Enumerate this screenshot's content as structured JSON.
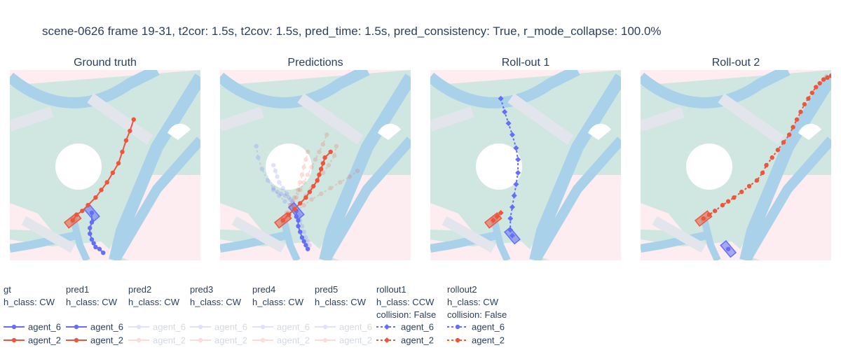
{
  "figure": {
    "title": "scene-0626 frame 19-31, t2cor: 1.5s, t2cov: 1.5s, pred_time: 1.5s, pred_consistency: True, r_mode_collapse: 100.0%"
  },
  "colors": {
    "agent_6": "#636efa",
    "agent_2": "#ef553b",
    "map_bg": "#fdedf1",
    "map_drivable": "#d0e6e0",
    "map_lane": "#a9d1ea",
    "map_cross": "#e2e5ec"
  },
  "chart_data": [
    {
      "type": "line",
      "title": "Ground truth",
      "xlabel": "",
      "ylabel": "",
      "xlim": [
        0,
        100
      ],
      "ylim": [
        0,
        100
      ],
      "series": [
        {
          "name": "agent_6",
          "group": "gt",
          "marker": "circle",
          "dash": "solid",
          "opacity": 1,
          "x": [
            43,
            43,
            42,
            42,
            43,
            44,
            45,
            47,
            49
          ],
          "y": [
            25,
            20,
            17,
            14,
            11,
            9,
            7,
            6,
            4
          ]
        },
        {
          "name": "agent_2",
          "group": "gt",
          "marker": "circle",
          "dash": "solid",
          "opacity": 1,
          "x": [
            33,
            35,
            38,
            41,
            45,
            48,
            51,
            54,
            57,
            59,
            61,
            63,
            65
          ],
          "y": [
            21,
            24,
            26,
            29,
            33,
            37,
            41,
            46,
            51,
            57,
            63,
            68,
            74
          ]
        }
      ]
    },
    {
      "type": "line",
      "title": "Predictions",
      "xlabel": "",
      "ylabel": "",
      "xlim": [
        0,
        100
      ],
      "ylim": [
        0,
        100
      ],
      "series": [
        {
          "name": "agent_6",
          "group": "pred1",
          "marker": "circle",
          "dash": "solid",
          "opacity": 1,
          "x": [
            40,
            40,
            41,
            41,
            42,
            43,
            44,
            45,
            46
          ],
          "y": [
            26,
            23,
            21,
            18,
            15,
            12,
            10,
            8,
            6
          ]
        },
        {
          "name": "agent_6",
          "group": "pred2",
          "marker": "circle",
          "dash": "dot",
          "opacity": 0.2,
          "x": [
            19,
            20,
            22,
            25,
            28,
            31,
            34,
            37,
            39
          ],
          "y": [
            60,
            54,
            48,
            42,
            38,
            34,
            31,
            29,
            27
          ]
        },
        {
          "name": "agent_6",
          "group": "pred3",
          "marker": "circle",
          "dash": "dot",
          "opacity": 0.2,
          "x": [
            38,
            37,
            35,
            33,
            31,
            30,
            29,
            28
          ],
          "y": [
            30,
            32,
            35,
            38,
            41,
            44,
            47,
            50
          ]
        },
        {
          "name": "agent_6",
          "group": "pred4",
          "marker": "circle",
          "dash": "dot",
          "opacity": 0.2,
          "x": [
            39,
            38,
            36,
            34,
            32,
            30,
            28
          ],
          "y": [
            29,
            31,
            33,
            34,
            35,
            36,
            37
          ]
        },
        {
          "name": "agent_6",
          "group": "pred5",
          "marker": "circle",
          "dash": "dot",
          "opacity": 0.2,
          "x": [
            41,
            42,
            43,
            44,
            45,
            46,
            47
          ],
          "y": [
            24,
            21,
            18,
            15,
            12,
            10,
            8
          ]
        },
        {
          "name": "agent_2",
          "group": "pred1",
          "marker": "circle",
          "dash": "solid",
          "opacity": 1,
          "x": [
            33,
            36,
            39,
            42,
            45,
            47,
            49,
            51,
            52,
            53,
            54,
            55,
            58
          ],
          "y": [
            21,
            24,
            27,
            30,
            33,
            36,
            39,
            42,
            45,
            48,
            51,
            54,
            57
          ]
        },
        {
          "name": "agent_2",
          "group": "pred2",
          "marker": "circle",
          "dash": "dot",
          "opacity": 0.2,
          "x": [
            33,
            36,
            40,
            44,
            48,
            53,
            58,
            63,
            68,
            72
          ],
          "y": [
            21,
            23,
            26,
            29,
            32,
            35,
            38,
            41,
            44,
            47
          ]
        },
        {
          "name": "agent_2",
          "group": "pred3",
          "marker": "circle",
          "dash": "dot",
          "opacity": 0.2,
          "x": [
            33,
            36,
            38,
            40,
            42,
            44,
            46,
            48,
            50,
            52,
            54,
            56
          ],
          "y": [
            21,
            25,
            29,
            33,
            37,
            41,
            45,
            49,
            53,
            57,
            61,
            66
          ]
        },
        {
          "name": "agent_2",
          "group": "pred4",
          "marker": "circle",
          "dash": "dot",
          "opacity": 0.2,
          "x": [
            33,
            35,
            37,
            39,
            41,
            42,
            43,
            44,
            45,
            46
          ],
          "y": [
            21,
            25,
            29,
            33,
            37,
            41,
            45,
            49,
            53,
            57
          ]
        },
        {
          "name": "agent_2",
          "group": "pred5",
          "marker": "circle",
          "dash": "dot",
          "opacity": 0.2,
          "x": [
            33,
            36,
            39,
            42,
            45,
            48,
            51,
            54,
            57,
            60,
            61
          ],
          "y": [
            21,
            24,
            27,
            30,
            34,
            38,
            42,
            46,
            50,
            55,
            60
          ]
        }
      ]
    },
    {
      "type": "line",
      "title": "Roll-out 1",
      "xlabel": "",
      "ylabel": "",
      "xlim": [
        0,
        100
      ],
      "ylim": [
        0,
        100
      ],
      "series": [
        {
          "name": "agent_6",
          "group": "rollout1",
          "marker": "diamond",
          "dash": "dot",
          "opacity": 1,
          "x": [
            43,
            42,
            42,
            43,
            44,
            45,
            46,
            46,
            45,
            43,
            41,
            39,
            37
          ],
          "y": [
            13,
            16,
            22,
            28,
            34,
            40,
            46,
            53,
            59,
            66,
            72,
            78,
            85
          ]
        },
        {
          "name": "agent_2",
          "group": "rollout1",
          "marker": "diamond",
          "dash": "dot",
          "opacity": 1,
          "x": [
            33,
            35,
            37
          ],
          "y": [
            21,
            23,
            25
          ]
        }
      ]
    },
    {
      "type": "line",
      "title": "Roll-out 2",
      "xlabel": "",
      "ylabel": "",
      "xlim": [
        0,
        100
      ],
      "ylim": [
        0,
        100
      ],
      "series": [
        {
          "name": "agent_6",
          "group": "rollout2",
          "marker": "circle",
          "dash": "dot",
          "opacity": 1,
          "x": [
            46
          ],
          "y": [
            6
          ]
        },
        {
          "name": "agent_2",
          "group": "rollout2",
          "marker": "circle",
          "dash": "dot",
          "opacity": 1,
          "x": [
            33,
            36,
            39,
            43,
            46,
            49,
            53,
            57,
            61,
            64,
            66,
            69,
            72,
            75,
            78,
            80,
            82,
            84,
            86,
            88,
            90,
            92,
            94,
            96,
            98,
            100
          ],
          "y": [
            22,
            24,
            26,
            29,
            31,
            33,
            36,
            39,
            42,
            46,
            50,
            54,
            58,
            62,
            66,
            70,
            74,
            78,
            82,
            85,
            88,
            91,
            93,
            95,
            96,
            97
          ]
        }
      ]
    }
  ],
  "legend": {
    "groups": [
      {
        "key": "gt",
        "title_lines": [
          "gt",
          "h_class: CW"
        ],
        "marker": "circle",
        "dash": "solid",
        "opacity": 1
      },
      {
        "key": "pred1",
        "title_lines": [
          "pred1",
          "h_class: CW"
        ],
        "marker": "circle",
        "dash": "solid",
        "opacity": 1
      },
      {
        "key": "pred2",
        "title_lines": [
          "pred2",
          "h_class: CW"
        ],
        "marker": "circle",
        "dash": "solid",
        "opacity": 0.2
      },
      {
        "key": "pred3",
        "title_lines": [
          "pred3",
          "h_class: CW"
        ],
        "marker": "circle",
        "dash": "solid",
        "opacity": 0.2
      },
      {
        "key": "pred4",
        "title_lines": [
          "pred4",
          "h_class: CW"
        ],
        "marker": "circle",
        "dash": "solid",
        "opacity": 0.2
      },
      {
        "key": "pred5",
        "title_lines": [
          "pred5",
          "h_class: CW"
        ],
        "marker": "circle",
        "dash": "solid",
        "opacity": 0.2
      },
      {
        "key": "rollout1",
        "title_lines": [
          "rollout1",
          "h_class: CCW",
          "collision: False"
        ],
        "marker": "diamond",
        "dash": "dot",
        "opacity": 1
      },
      {
        "key": "rollout2",
        "title_lines": [
          "rollout2",
          "h_class: CW",
          "collision: False"
        ],
        "marker": "circle",
        "dash": "dot",
        "opacity": 1
      }
    ],
    "entries": [
      "agent_6",
      "agent_2"
    ]
  }
}
